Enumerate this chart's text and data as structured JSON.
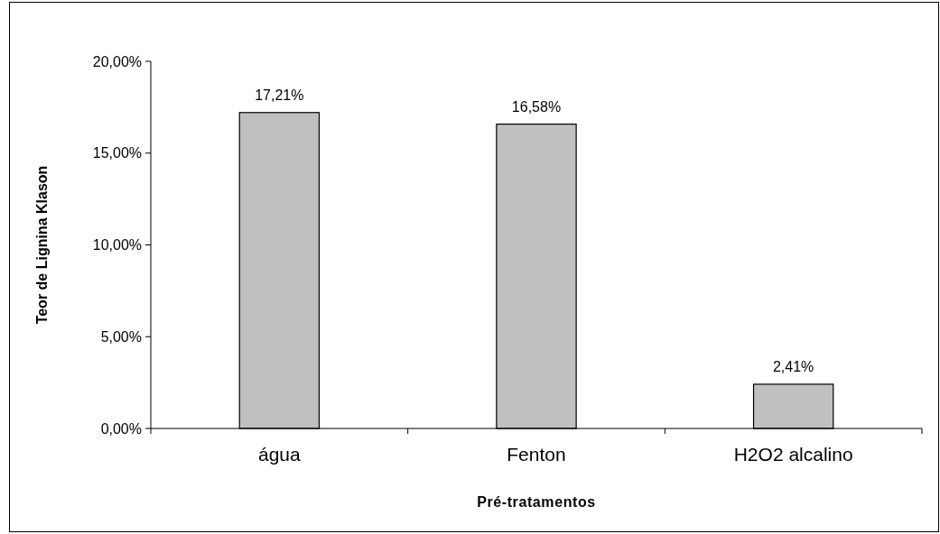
{
  "chart_data": {
    "type": "bar",
    "xlabel": "Pré-tratamentos",
    "ylabel": "Teor de Lignina Klason",
    "categories": [
      "água",
      "Fenton",
      "H2O2 alcalino"
    ],
    "values": [
      17.21,
      16.58,
      2.41
    ],
    "value_labels": [
      "17,21%",
      "16,58%",
      "2,41%"
    ],
    "color": "#c0c0c0",
    "ylim": [
      0,
      20
    ],
    "yticks": [
      {
        "value": 0,
        "label": "0,00%"
      },
      {
        "value": 5,
        "label": "5,00%"
      },
      {
        "value": 10,
        "label": "10,00%"
      },
      {
        "value": 15,
        "label": "15,00%"
      },
      {
        "value": 20,
        "label": "20,00%"
      }
    ],
    "grid": false
  }
}
